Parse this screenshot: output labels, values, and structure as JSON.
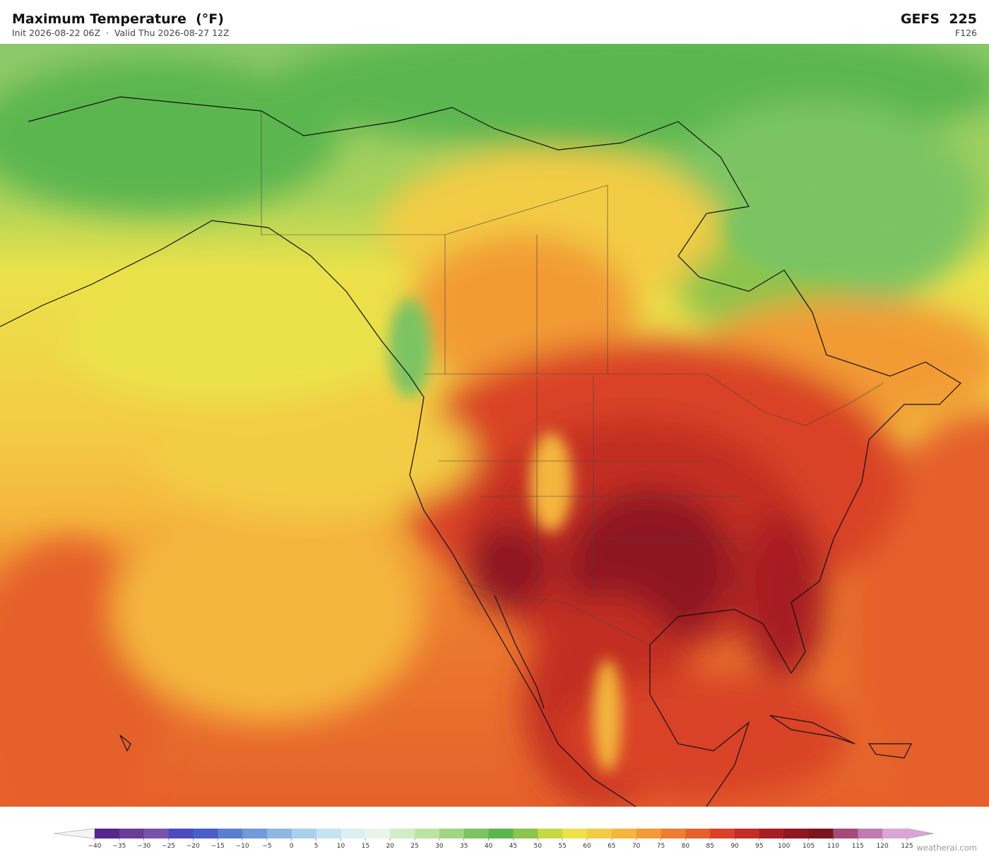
{
  "header": {
    "title": "Maximum Temperature  (°F)",
    "subtitle": "Init 2026-08-22 06Z  ·  Valid Thu 2026-08-27 12Z",
    "model": "GEFS  225",
    "forecast_hour": "F126"
  },
  "colorbar": {
    "ticks": [
      {
        "value": -40,
        "label": "−40"
      },
      {
        "value": -35,
        "label": "−35"
      },
      {
        "value": -30,
        "label": "−30"
      },
      {
        "value": -25,
        "label": "−25"
      },
      {
        "value": -20,
        "label": "−20"
      },
      {
        "value": -15,
        "label": "−15"
      },
      {
        "value": -10,
        "label": "−10"
      },
      {
        "value": -5,
        "label": "−5"
      },
      0,
      5,
      10,
      15,
      20,
      25,
      30,
      35,
      40,
      45,
      50,
      55,
      60,
      65,
      70,
      75,
      80,
      85,
      90,
      95,
      100,
      105,
      110,
      115,
      120,
      125
    ],
    "colors": [
      "#54278f",
      "#6a3d9a",
      "#7b52ab",
      "#4b4bc0",
      "#4a5dc8",
      "#5a7fd0",
      "#6f9bd6",
      "#8fb8e0",
      "#a8d0ea",
      "#c4e2f0",
      "#dceff4",
      "#e8f5e8",
      "#d2ecc8",
      "#bde3a0",
      "#9fd67f",
      "#7cc463",
      "#5cb64f",
      "#8cc44e",
      "#c6d843",
      "#ebe24a",
      "#f3cc45",
      "#f4b63c",
      "#f29b36",
      "#ed7e2f",
      "#e5612b",
      "#d94227",
      "#c22d24",
      "#a71e22",
      "#8e1720",
      "#7a1520",
      "#a64a7a",
      "#c07ab0",
      "#d9a6d4"
    ],
    "under_color": "#f4f4f4",
    "over_color": "#d9a6d4"
  },
  "watermark": "weatherai.com"
}
